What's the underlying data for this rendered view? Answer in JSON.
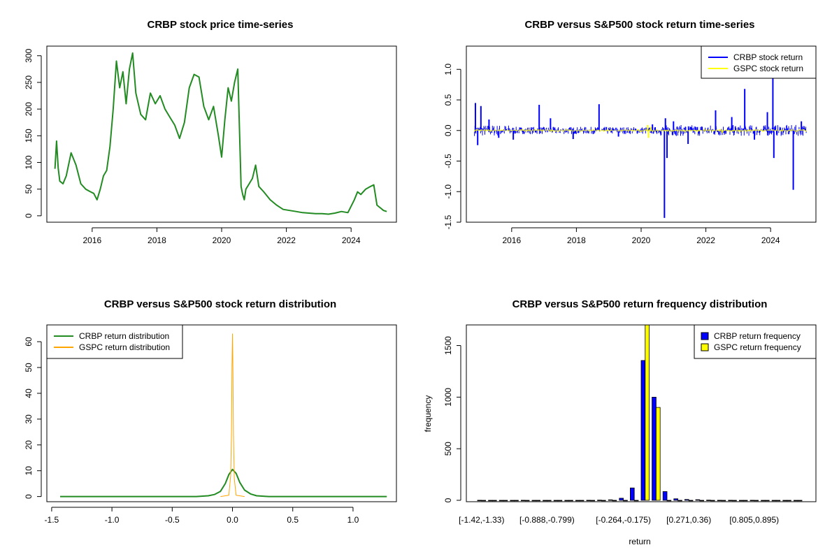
{
  "chart_data": [
    {
      "type": "line",
      "title": "CRBP stock price time-series",
      "xlabel": "",
      "ylabel": "",
      "xlim": [
        2014.6,
        2025.4
      ],
      "ylim": [
        -12,
        318
      ],
      "xticks": [
        "2016",
        "2018",
        "2020",
        "2022",
        "2024"
      ],
      "yticks": [
        "0",
        "50",
        "100",
        "150",
        "200",
        "250",
        "300"
      ],
      "series": [
        {
          "color": "#228b22",
          "x": [
            2014.85,
            2014.9,
            2014.95,
            2015.0,
            2015.1,
            2015.2,
            2015.35,
            2015.5,
            2015.65,
            2015.8,
            2015.95,
            2016.05,
            2016.15,
            2016.25,
            2016.35,
            2016.45,
            2016.55,
            2016.65,
            2016.75,
            2016.85,
            2016.95,
            2017.05,
            2017.15,
            2017.25,
            2017.35,
            2017.5,
            2017.65,
            2017.8,
            2017.95,
            2018.1,
            2018.25,
            2018.4,
            2018.55,
            2018.7,
            2018.85,
            2019.0,
            2019.15,
            2019.3,
            2019.45,
            2019.6,
            2019.75,
            2019.9,
            2020.0,
            2020.1,
            2020.2,
            2020.3,
            2020.4,
            2020.5,
            2020.6,
            2020.65,
            2020.7,
            2020.75,
            2020.85,
            2020.95,
            2021.05,
            2021.15,
            2021.3,
            2021.5,
            2021.7,
            2021.9,
            2022.1,
            2022.3,
            2022.5,
            2022.7,
            2022.9,
            2023.1,
            2023.3,
            2023.5,
            2023.7,
            2023.9,
            2024.1,
            2024.2,
            2024.3,
            2024.45,
            2024.6,
            2024.7,
            2024.8,
            2024.9,
            2025.0,
            2025.1
          ],
          "values": [
            88,
            140,
            90,
            65,
            60,
            75,
            118,
            95,
            60,
            50,
            45,
            42,
            30,
            50,
            75,
            85,
            130,
            200,
            290,
            240,
            270,
            210,
            275,
            305,
            230,
            190,
            180,
            230,
            210,
            225,
            200,
            185,
            170,
            145,
            175,
            240,
            265,
            260,
            205,
            180,
            205,
            150,
            110,
            180,
            240,
            215,
            250,
            275,
            55,
            40,
            30,
            50,
            60,
            70,
            95,
            55,
            45,
            30,
            20,
            12,
            10,
            8,
            6,
            5,
            4,
            4,
            3,
            5,
            8,
            6,
            30,
            45,
            40,
            50,
            55,
            58,
            20,
            15,
            10,
            8
          ]
        }
      ]
    },
    {
      "type": "line",
      "title": "CRBP versus S&P500 stock return time-series",
      "xlabel": "",
      "ylabel": "",
      "xlim": [
        2014.6,
        2025.4
      ],
      "ylim": [
        -1.5,
        1.38
      ],
      "xticks": [
        "2016",
        "2018",
        "2020",
        "2022",
        "2024"
      ],
      "yticks": [
        "-1.5",
        "-1.0",
        "-0.5",
        "0.0",
        "0.5",
        "1.0"
      ],
      "legend": "top-right",
      "series": [
        {
          "name": "CRBP stock return",
          "color": "#0000ff",
          "spikes": [
            [
              2014.88,
              0.45
            ],
            [
              2014.95,
              -0.24
            ],
            [
              2015.05,
              0.4
            ],
            [
              2015.3,
              0.18
            ],
            [
              2015.6,
              -0.12
            ],
            [
              2016.05,
              -0.15
            ],
            [
              2016.85,
              0.42
            ],
            [
              2017.2,
              0.2
            ],
            [
              2017.9,
              -0.14
            ],
            [
              2018.7,
              0.43
            ],
            [
              2019.3,
              -0.1
            ],
            [
              2020.35,
              0.1
            ],
            [
              2020.72,
              -1.43
            ],
            [
              2020.75,
              0.2
            ],
            [
              2020.8,
              -0.45
            ],
            [
              2021.0,
              0.15
            ],
            [
              2021.45,
              -0.22
            ],
            [
              2022.3,
              0.33
            ],
            [
              2022.8,
              0.22
            ],
            [
              2023.2,
              0.68
            ],
            [
              2023.5,
              -0.15
            ],
            [
              2023.9,
              0.3
            ],
            [
              2024.07,
              0.85
            ],
            [
              2024.1,
              -0.45
            ],
            [
              2024.7,
              -0.97
            ],
            [
              2024.95,
              0.15
            ]
          ]
        },
        {
          "name": "GSPC stock return",
          "color": "#ffff00",
          "spikes": [
            [
              2020.2,
              0.09
            ],
            [
              2020.23,
              -0.12
            ],
            [
              2020.3,
              0.06
            ],
            [
              2022.5,
              -0.04
            ]
          ]
        }
      ]
    },
    {
      "type": "line",
      "title": "CRBP versus S&P500 stock return distribution",
      "xlabel": "",
      "ylabel": "",
      "xlim": [
        -1.54,
        1.36
      ],
      "ylim": [
        -2,
        66.5
      ],
      "xticks": [
        "-1.5",
        "-1.0",
        "-0.5",
        "0.0",
        "0.5",
        "1.0"
      ],
      "yticks": [
        "0",
        "10",
        "20",
        "30",
        "40",
        "50",
        "60"
      ],
      "legend": "top-left",
      "series": [
        {
          "name": "CRBP return distribution",
          "color": "#228b22",
          "x": [
            -1.43,
            -0.3,
            -0.2,
            -0.15,
            -0.1,
            -0.06,
            -0.03,
            0.0,
            0.03,
            0.06,
            0.1,
            0.15,
            0.2,
            0.3,
            1.28
          ],
          "values": [
            0,
            0,
            0.3,
            0.8,
            2,
            5,
            8.5,
            10.5,
            9,
            5.5,
            2.5,
            1,
            0.3,
            0,
            0
          ]
        },
        {
          "name": "GSPC return distribution",
          "color": "#ffa500",
          "x": [
            -0.1,
            -0.03,
            -0.015,
            -0.008,
            -0.004,
            0.0,
            0.004,
            0.008,
            0.015,
            0.03,
            0.1
          ],
          "values": [
            0,
            0.5,
            8,
            25,
            50,
            63,
            48,
            24,
            7,
            0.5,
            0
          ]
        }
      ]
    },
    {
      "type": "bar",
      "title": "CRBP versus S&P500 return frequency distribution",
      "xlabel": "return",
      "ylabel": "frequency",
      "ylim": [
        0,
        1700
      ],
      "yticks": [
        "0",
        "500",
        "1000",
        "1500"
      ],
      "legend": "top-right",
      "categories": [
        "[-1.42,-1.33)",
        "[-1.33,-1.24)",
        "[-1.24,-1.15)",
        "[-1.15,-1.06)",
        "[-1.06,-0.977)",
        "[-0.977,-0.888)",
        "[-0.888,-0.799)",
        "[-0.799,-0.71)",
        "[-0.71,-0.621)",
        "[-0.621,-0.532)",
        "[-0.532,-0.443)",
        "[-0.443,-0.353)",
        "[-0.353,-0.264)",
        "[-0.264,-0.175)",
        "[-0.175,-0.0857)",
        "[-0.0857,0.00348)",
        "[0.00348,0.0926)",
        "[0.0926,0.182)",
        "[0.182,0.271)",
        "[0.271,0.36)",
        "[0.36,0.449)",
        "[0.449,0.538)",
        "[0.538,0.627)",
        "[0.627,0.716)",
        "[0.716,0.805)",
        "[0.805,0.895)",
        "[0.895,0.984)",
        "[0.984,1.07)",
        "[1.07,1.16)",
        "[1.16,1.25]"
      ],
      "shown_categories": [
        "[-1.42,-1.33)",
        "[-0.888,-0.799)",
        "[-0.264,-0.175)",
        "[0.271,0.36)",
        "[0.805,0.895)"
      ],
      "series": [
        {
          "name": "CRBP return frequency",
          "color": "#0000ff",
          "values": [
            1,
            0,
            0,
            0,
            1,
            0,
            0,
            0,
            0,
            0,
            1,
            2,
            5,
            20,
            120,
            1355,
            1000,
            85,
            15,
            8,
            6,
            2,
            1,
            1,
            0,
            1,
            0,
            0,
            0,
            0
          ]
        },
        {
          "name": "GSPC return frequency",
          "color": "#ffff00",
          "values": [
            0,
            0,
            0,
            0,
            0,
            0,
            0,
            0,
            0,
            0,
            0,
            0,
            0,
            0,
            0,
            1700,
            900,
            0,
            0,
            0,
            0,
            0,
            0,
            0,
            0,
            0,
            0,
            0,
            0,
            0
          ]
        }
      ]
    }
  ]
}
